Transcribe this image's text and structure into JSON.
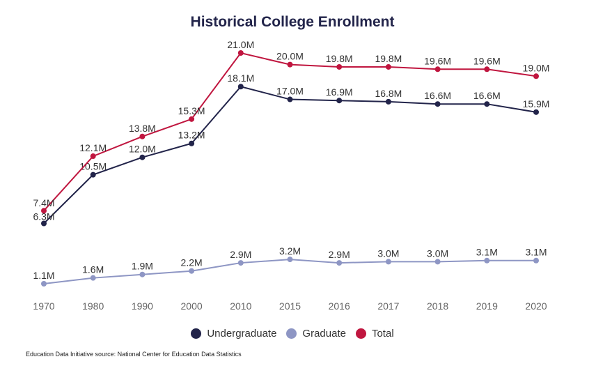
{
  "chart_data": {
    "type": "line",
    "title": "Historical College Enrollment",
    "categories": [
      "1970",
      "1980",
      "1990",
      "2000",
      "2010",
      "2015",
      "2016",
      "2017",
      "2018",
      "2019",
      "2020"
    ],
    "series": [
      {
        "name": "Undergraduate",
        "color": "#22244a",
        "values": [
          6.3,
          10.5,
          12.0,
          13.2,
          18.1,
          17.0,
          16.9,
          16.8,
          16.6,
          16.6,
          15.9
        ],
        "labels": [
          "6.3M",
          "10.5M",
          "12.0M",
          "13.2M",
          "18.1M",
          "17.0M",
          "16.9M",
          "16.8M",
          "16.6M",
          "16.6M",
          "15.9M"
        ]
      },
      {
        "name": "Graduate",
        "color": "#8e96c4",
        "values": [
          1.1,
          1.6,
          1.9,
          2.2,
          2.9,
          3.2,
          2.9,
          3.0,
          3.0,
          3.1,
          3.1
        ],
        "labels": [
          "1.1M",
          "1.6M",
          "1.9M",
          "2.2M",
          "2.9M",
          "3.2M",
          "2.9M",
          "3.0M",
          "3.0M",
          "3.1M",
          "3.1M"
        ]
      },
      {
        "name": "Total",
        "color": "#c0163f",
        "values": [
          7.4,
          12.1,
          13.8,
          15.3,
          21.0,
          20.0,
          19.8,
          19.8,
          19.6,
          19.6,
          19.0
        ],
        "labels": [
          "7.4M",
          "12.1M",
          "13.8M",
          "15.3M",
          "21.0M",
          "20.0M",
          "19.8M",
          "19.8M",
          "19.6M",
          "19.6M",
          "19.0M"
        ]
      }
    ],
    "legend_position": "bottom",
    "grid": false
  },
  "source": "Education Data Initiative source: National Center for Education Data Statistics"
}
